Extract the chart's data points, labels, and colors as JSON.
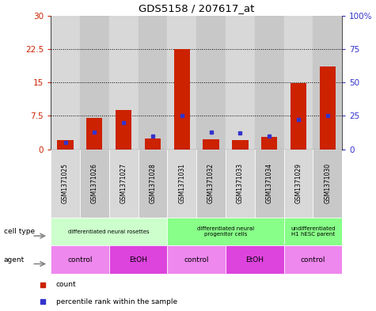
{
  "title": "GDS5158 / 207617_at",
  "samples": [
    "GSM1371025",
    "GSM1371026",
    "GSM1371027",
    "GSM1371028",
    "GSM1371031",
    "GSM1371032",
    "GSM1371033",
    "GSM1371034",
    "GSM1371029",
    "GSM1371030"
  ],
  "counts": [
    2.0,
    7.0,
    8.8,
    2.5,
    22.5,
    2.2,
    2.0,
    2.8,
    14.8,
    18.5
  ],
  "percentiles": [
    5,
    13,
    20,
    10,
    25,
    13,
    12,
    10,
    22,
    25
  ],
  "bar_color": "#cc2200",
  "dot_color": "#3333cc",
  "ylim_left": [
    0,
    30
  ],
  "ylim_right": [
    0,
    100
  ],
  "yticks_left": [
    0,
    7.5,
    15,
    22.5,
    30
  ],
  "yticks_right": [
    0,
    25,
    50,
    75,
    100
  ],
  "ytick_labels_left": [
    "0",
    "7.5",
    "15",
    "22.5",
    "30"
  ],
  "ytick_labels_right": [
    "0",
    "25",
    "50",
    "75",
    "100%"
  ],
  "cell_type_groups": [
    {
      "label": "differentiated neural rosettes",
      "start": 0,
      "end": 3,
      "color": "#ccffcc"
    },
    {
      "label": "differentiated neural\nprogenitor cells",
      "start": 4,
      "end": 7,
      "color": "#88ff88"
    },
    {
      "label": "undifferentiated\nH1 hESC parent",
      "start": 8,
      "end": 9,
      "color": "#88ff88"
    }
  ],
  "agent_groups": [
    {
      "label": "control",
      "start": 0,
      "end": 1,
      "color": "#ee88ee"
    },
    {
      "label": "EtOH",
      "start": 2,
      "end": 3,
      "color": "#dd44dd"
    },
    {
      "label": "control",
      "start": 4,
      "end": 5,
      "color": "#ee88ee"
    },
    {
      "label": "EtOH",
      "start": 6,
      "end": 7,
      "color": "#dd44dd"
    },
    {
      "label": "control",
      "start": 8,
      "end": 9,
      "color": "#ee88ee"
    }
  ],
  "col_colors": [
    "#d8d8d8",
    "#c8c8c8"
  ],
  "bg_color": "#ffffff",
  "bar_width": 0.55
}
